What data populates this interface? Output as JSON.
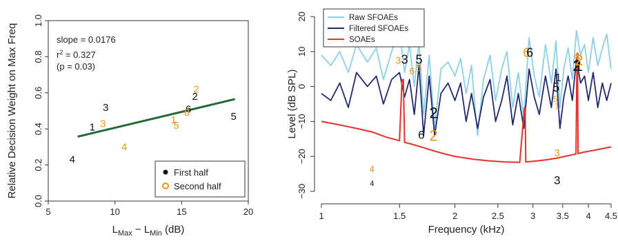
{
  "chart_data": [
    {
      "type": "scatter",
      "xlabel_main": "L",
      "xlabel_sub1": "Max",
      "xlabel_mid": " − L",
      "xlabel_sub2": "Min",
      "xlabel_unit": " (dB)",
      "ylabel": "Relative Decision Weight on Max Freq",
      "xlim": [
        5,
        20
      ],
      "ylim": [
        0.0,
        1.0
      ],
      "xticks": [
        "5",
        "10",
        "15",
        "20"
      ],
      "yticks": [
        "0.0",
        "0.2",
        "0.4",
        "0.6",
        "0.8",
        "1.0"
      ],
      "stats": {
        "slope": "slope = 0.0176",
        "r2_prefix": "r",
        "r2_sup": "2",
        "r2_suffix": " = 0.327",
        "p": "(p = 0.03)"
      },
      "regression": {
        "x": [
          7.2,
          19.0
        ],
        "y": [
          0.357,
          0.565
        ],
        "color": "#1f6b33"
      },
      "series": [
        {
          "name": "First half",
          "color": "#111111",
          "points": [
            {
              "label": "1",
              "x": 8.3,
              "y": 0.41
            },
            {
              "label": "2",
              "x": 16.0,
              "y": 0.58
            },
            {
              "label": "3",
              "x": 9.3,
              "y": 0.52
            },
            {
              "label": "4",
              "x": 6.8,
              "y": 0.23
            },
            {
              "label": "5",
              "x": 18.9,
              "y": 0.47
            },
            {
              "label": "6",
              "x": 15.5,
              "y": 0.51
            }
          ]
        },
        {
          "name": "Second half",
          "color": "#e8971e",
          "points": [
            {
              "label": "1",
              "x": 14.4,
              "y": 0.45
            },
            {
              "label": "2",
              "x": 16.1,
              "y": 0.62
            },
            {
              "label": "3",
              "x": 9.1,
              "y": 0.43
            },
            {
              "label": "4",
              "x": 10.7,
              "y": 0.3
            },
            {
              "label": "5",
              "x": 14.6,
              "y": 0.42
            },
            {
              "label": "6",
              "x": 15.4,
              "y": 0.49
            }
          ]
        }
      ],
      "legend": {
        "position": "bottom-right",
        "items": [
          "First half",
          "Second half"
        ]
      }
    },
    {
      "type": "line",
      "xlabel": "Frequency (kHz)",
      "ylabel": "Level (dB SPL)",
      "xscale": "log",
      "xlim": [
        1,
        4.5
      ],
      "ylim": [
        -32,
        22
      ],
      "xticks": [
        {
          "v": 1,
          "label": "1"
        },
        {
          "v": 1.5,
          "label": "1.5"
        },
        {
          "v": 2,
          "label": "2"
        },
        {
          "v": 2.5,
          "label": "2.5"
        },
        {
          "v": 3,
          "label": "3"
        },
        {
          "v": 3.5,
          "label": "3.5"
        },
        {
          "v": 4,
          "label": "4"
        },
        {
          "v": 4.5,
          "label": "4.5"
        }
      ],
      "yticks": [
        {
          "v": -30,
          "label": "−30"
        },
        {
          "v": -20,
          "label": "−20"
        },
        {
          "v": -10,
          "label": "−10"
        },
        {
          "v": 0,
          "label": "0"
        },
        {
          "v": 10,
          "label": "10"
        },
        {
          "v": 20,
          "label": "20"
        }
      ],
      "legend": {
        "position": "top-left",
        "items": [
          {
            "name": "Raw SFOAEs",
            "color": "#8dcfe6"
          },
          {
            "name": "Filtered SFOAEs",
            "color": "#22286e"
          },
          {
            "name": "SOAEs",
            "color": "#e8302a"
          }
        ]
      },
      "series": [
        {
          "name": "Raw SFOAEs",
          "color": "#8dcfe6",
          "x": [
            1.0,
            1.05,
            1.1,
            1.15,
            1.2,
            1.27,
            1.33,
            1.38,
            1.44,
            1.5,
            1.54,
            1.58,
            1.62,
            1.66,
            1.7,
            1.75,
            1.8,
            1.86,
            1.93,
            2.0,
            2.06,
            2.12,
            2.18,
            2.25,
            2.32,
            2.4,
            2.47,
            2.55,
            2.62,
            2.7,
            2.78,
            2.86,
            2.94,
            3.02,
            3.1,
            3.2,
            3.3,
            3.38,
            3.45,
            3.52,
            3.6,
            3.68,
            3.76,
            3.84,
            3.92,
            4.0,
            4.1,
            4.2,
            4.3,
            4.4,
            4.5
          ],
          "y": [
            9,
            6,
            10,
            4,
            12,
            7,
            11,
            2,
            10,
            16,
            4,
            12,
            0,
            13,
            -8,
            9,
            -12,
            5,
            7,
            3,
            8,
            -2,
            6,
            -14,
            2,
            9,
            -4,
            5,
            10,
            -6,
            4,
            -9,
            14,
            3,
            -3,
            12,
            1,
            13,
            -6,
            5,
            11,
            2,
            16,
            9,
            12,
            4,
            14,
            6,
            11,
            15,
            5
          ]
        },
        {
          "name": "Filtered SFOAEs",
          "color": "#22286e",
          "x": [
            1.0,
            1.05,
            1.1,
            1.15,
            1.2,
            1.27,
            1.33,
            1.38,
            1.44,
            1.5,
            1.54,
            1.58,
            1.62,
            1.66,
            1.7,
            1.75,
            1.8,
            1.86,
            1.93,
            2.0,
            2.06,
            2.12,
            2.18,
            2.25,
            2.32,
            2.4,
            2.47,
            2.55,
            2.62,
            2.7,
            2.78,
            2.86,
            2.94,
            3.02,
            3.1,
            3.2,
            3.3,
            3.38,
            3.45,
            3.52,
            3.6,
            3.68,
            3.76,
            3.84,
            3.92,
            4.0,
            4.1,
            4.2,
            4.3,
            4.4,
            4.5
          ],
          "y": [
            -2,
            -4,
            1,
            -6,
            4,
            0,
            3,
            -5,
            2,
            4,
            -3,
            2,
            -8,
            6,
            -14,
            3,
            -14,
            -2,
            1,
            -4,
            1,
            -10,
            -2,
            -12,
            -3,
            2,
            -10,
            -4,
            3,
            -11,
            -2,
            -12,
            5,
            -3,
            -8,
            3,
            -6,
            5,
            -12,
            -3,
            3,
            -4,
            8,
            1,
            3,
            -4,
            4,
            -6,
            1,
            -4,
            1
          ]
        },
        {
          "name": "SOAEs",
          "color": "#e8302a",
          "x": [
            1.0,
            1.1,
            1.2,
            1.3,
            1.4,
            1.5,
            1.52,
            1.53,
            1.54,
            1.6,
            1.7,
            1.8,
            1.9,
            2.0,
            2.2,
            2.4,
            2.6,
            2.8,
            2.87,
            2.88,
            2.89,
            3.0,
            3.2,
            3.4,
            3.6,
            3.75,
            3.77,
            3.78,
            3.79,
            3.9,
            4.1,
            4.3,
            4.5
          ],
          "y": [
            -10,
            -11,
            -12,
            -13,
            -14.5,
            -15.5,
            2,
            2,
            -16,
            -16.5,
            -17.5,
            -18.5,
            -19.3,
            -20,
            -20.8,
            -21.3,
            -21.6,
            -21.7,
            -6,
            -6,
            -21.6,
            -21.4,
            -21,
            -20.5,
            -19.8,
            -19.3,
            9.5,
            9.5,
            -19.2,
            -18.8,
            -18.3,
            -17.8,
            -17.3
          ]
        }
      ],
      "annotations": [
        {
          "text": "3",
          "x": 1.49,
          "y": 6.5,
          "color": "#e8971e",
          "size": 14
        },
        {
          "text": "3",
          "x": 1.54,
          "y": 6.5,
          "color": "#111111",
          "size": 18
        },
        {
          "text": "6",
          "x": 1.6,
          "y": 3.5,
          "color": "#e8971e",
          "size": 14
        },
        {
          "text": "5",
          "x": 1.66,
          "y": 6.5,
          "color": "#111111",
          "size": 18
        },
        {
          "text": "5",
          "x": 1.66,
          "y": 4.5,
          "color": "#e8971e",
          "size": 14
        },
        {
          "text": "6",
          "x": 1.68,
          "y": -15,
          "color": "#111111",
          "size": 17
        },
        {
          "text": "2",
          "x": 1.79,
          "y": -9,
          "color": "#111111",
          "size": 22
        },
        {
          "text": "2",
          "x": 1.79,
          "y": -15.5,
          "color": "#e8971e",
          "size": 22
        },
        {
          "text": "6",
          "x": 2.9,
          "y": 8.5,
          "color": "#e8971e",
          "size": 18
        },
        {
          "text": "6",
          "x": 2.95,
          "y": 8.5,
          "color": "#111111",
          "size": 18
        },
        {
          "text": "1",
          "x": 3.42,
          "y": 1.5,
          "color": "#111111",
          "size": 16
        },
        {
          "text": "5",
          "x": 3.38,
          "y": -1.5,
          "color": "#111111",
          "size": 18
        },
        {
          "text": "5",
          "x": 3.37,
          "y": -4.5,
          "color": "#e8971e",
          "size": 13
        },
        {
          "text": "1",
          "x": 3.4,
          "y": -6.5,
          "color": "#e8971e",
          "size": 13
        },
        {
          "text": "3",
          "x": 3.4,
          "y": -20,
          "color": "#e8971e",
          "size": 15
        },
        {
          "text": "3",
          "x": 3.4,
          "y": -28,
          "color": "#111111",
          "size": 17
        },
        {
          "text": "4",
          "x": 3.75,
          "y": 7.8,
          "color": "#e8971e",
          "size": 13
        },
        {
          "text": "1",
          "x": 3.8,
          "y": 7.8,
          "color": "#e8971e",
          "size": 13
        },
        {
          "text": "1",
          "x": 3.8,
          "y": 4.5,
          "color": "#111111",
          "size": 22
        },
        {
          "text": "2",
          "x": 3.77,
          "y": 4.5,
          "color": "#111111",
          "size": 22
        },
        {
          "text": "2",
          "x": 3.81,
          "y": 6,
          "color": "#e8971e",
          "size": 22
        },
        {
          "text": "4",
          "x": 1.3,
          "y": -24.5,
          "color": "#e8971e",
          "size": 13
        },
        {
          "text": "4",
          "x": 1.3,
          "y": -28.5,
          "color": "#111111",
          "size": 11
        }
      ]
    }
  ]
}
